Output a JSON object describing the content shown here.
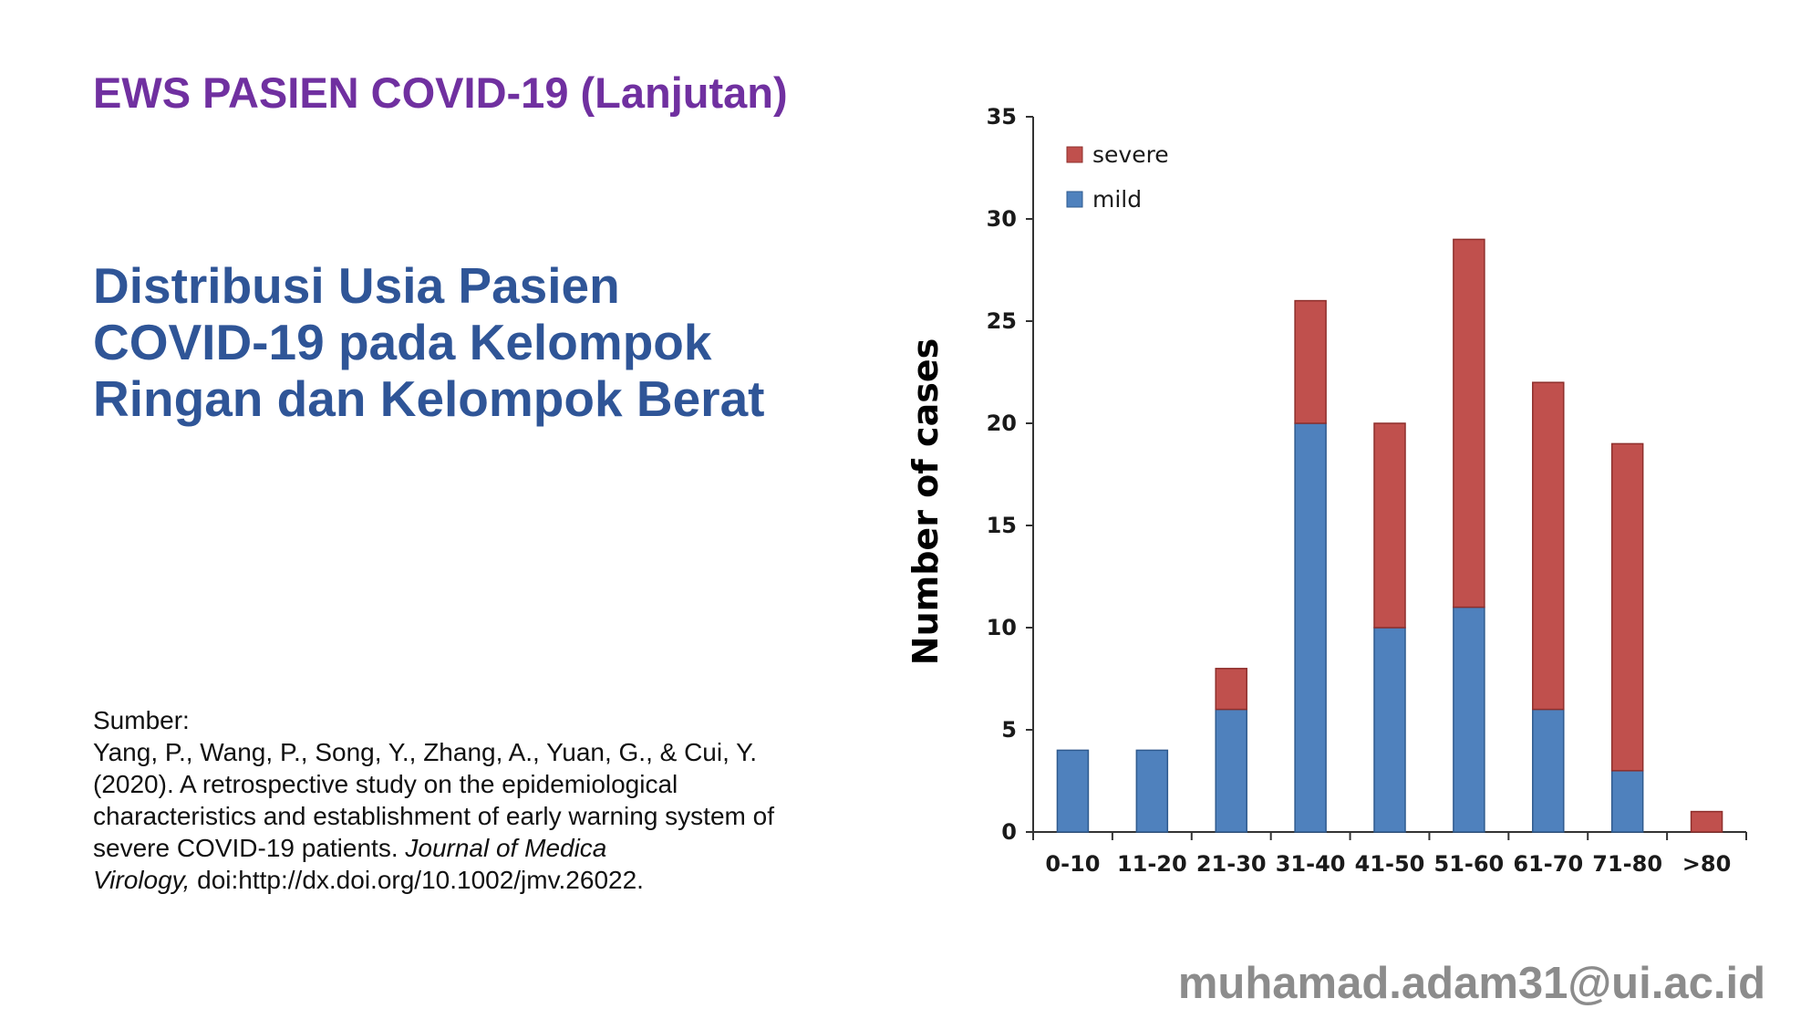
{
  "header": {
    "title": "EWS PASIEN COVID-19 (Lanjutan)"
  },
  "main": {
    "title_lines": [
      "Distribusi Usia Pasien",
      "COVID-19 pada Kelompok",
      "Ringan dan Kelompok Berat"
    ]
  },
  "source": {
    "label": "Sumber:",
    "line1": "Yang, P., Wang, P., Song, Y., Zhang, A., Yuan, G., & Cui, Y.",
    "line2": "(2020). A retrospective study on the epidemiological",
    "line3": "characteristics and establishment of early warning system of",
    "line4_plain": "severe COVID-19 patients. ",
    "line4_italic": "Journal of Medica",
    "line5_italic": "Virology,",
    "line5_plain": " doi:http://dx.doi.org/10.1002/jmv.26022."
  },
  "footer": {
    "email": "muhamad.adam31@ui.ac.id"
  },
  "colors": {
    "header": "#7030A0",
    "title": "#2F5597",
    "mild": "#4F81BD",
    "severe": "#C0504D",
    "footer": "#8c8c8c"
  },
  "chart_data": {
    "type": "bar",
    "stacked": true,
    "categories": [
      "0-10",
      "11-20",
      "21-30",
      "31-40",
      "41-50",
      "51-60",
      "61-70",
      "71-80",
      ">80"
    ],
    "series": [
      {
        "name": "mild",
        "values": [
          4,
          4,
          6,
          20,
          10,
          11,
          6,
          3,
          0
        ]
      },
      {
        "name": "severe",
        "values": [
          0,
          0,
          2,
          6,
          10,
          18,
          16,
          16,
          1
        ]
      }
    ],
    "ylabel": "Number of cases",
    "xlabel": "",
    "ylim": [
      0,
      35
    ],
    "yticks": [
      0,
      5,
      10,
      15,
      20,
      25,
      30,
      35
    ],
    "legend": {
      "position": "top-left",
      "order": [
        "severe",
        "mild"
      ]
    },
    "grid": false
  }
}
